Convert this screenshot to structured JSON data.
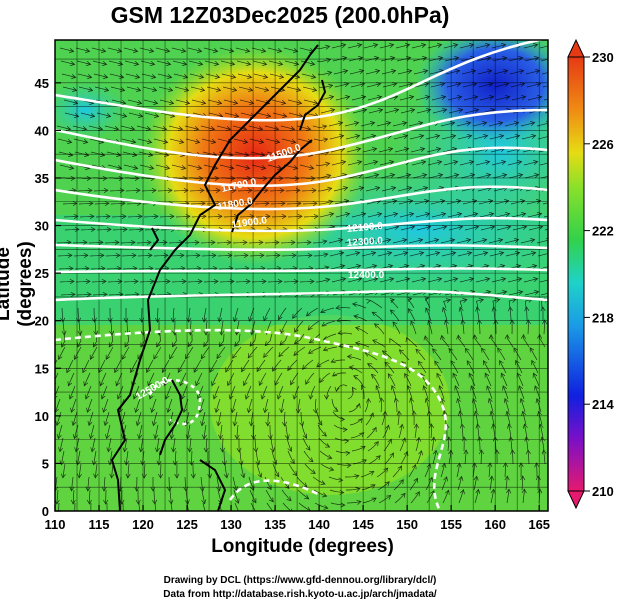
{
  "title": "GSM 12Z03Dec2025 (200.0hPa)",
  "xaxis": {
    "label": "Longitude (degrees)",
    "ticks": [
      "110",
      "115",
      "120",
      "125",
      "130",
      "135",
      "140",
      "145",
      "150",
      "155",
      "160",
      "165"
    ]
  },
  "yaxis": {
    "label": "Latitude  (degrees)",
    "ticks": [
      "0",
      "5",
      "10",
      "15",
      "20",
      "25",
      "30",
      "35",
      "40",
      "45"
    ]
  },
  "colorbar": {
    "ticks": [
      "230",
      "226",
      "222",
      "218",
      "214",
      "210"
    ],
    "colors": [
      "#e6196e",
      "#7a10c8",
      "#1020e0",
      "#1a9ae6",
      "#1fd2c8",
      "#32d24a",
      "#8ae02a",
      "#e6dc14",
      "#f08a14",
      "#e63a14"
    ]
  },
  "contour_labels": [
    "11500.0",
    "11700.0",
    "11800.0",
    "11900.0",
    "12100.0",
    "12300.0",
    "12400.0",
    "12500.0"
  ],
  "credits": [
    "Drawing by DCL (https://www.gfd-dennou.org/library/dcl/)",
    "Data from http://database.rish.kyoto-u.ac.jp/arch/jmadata/"
  ]
}
